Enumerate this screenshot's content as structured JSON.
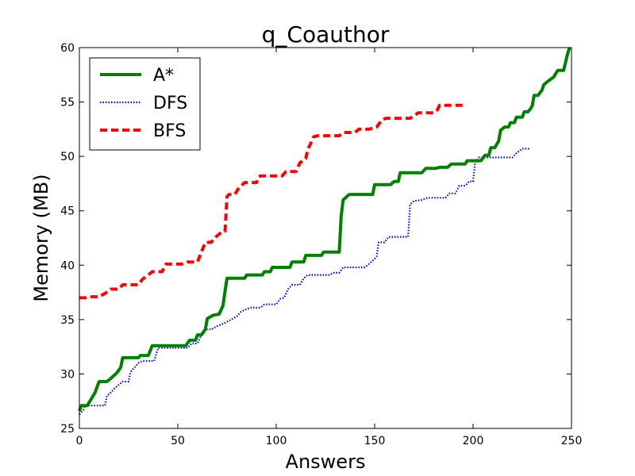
{
  "chart_data": {
    "type": "line",
    "title": "q_Coauthor",
    "xlabel": "Answers",
    "ylabel": "Memory (MB)",
    "xlim": [
      0,
      250
    ],
    "ylim": [
      25,
      60
    ],
    "xticks": [
      0,
      50,
      100,
      150,
      200,
      250
    ],
    "yticks": [
      25,
      30,
      35,
      40,
      45,
      50,
      55,
      60
    ],
    "grid": false,
    "legend_position": "top-left",
    "series": [
      {
        "name": "A*",
        "color": "#008000",
        "style": "solid",
        "points": [
          [
            0,
            26.6
          ],
          [
            1,
            27.1
          ],
          [
            4,
            27.1
          ],
          [
            6,
            27.7
          ],
          [
            8,
            28.3
          ],
          [
            10,
            29.3
          ],
          [
            14,
            29.3
          ],
          [
            16,
            29.6
          ],
          [
            19,
            30.1
          ],
          [
            21,
            30.6
          ],
          [
            22,
            31.5
          ],
          [
            30,
            31.5
          ],
          [
            31,
            31.7
          ],
          [
            35,
            31.7
          ],
          [
            37,
            32.6
          ],
          [
            54,
            32.6
          ],
          [
            56,
            33.1
          ],
          [
            59,
            33.1
          ],
          [
            60,
            33.6
          ],
          [
            62,
            33.6
          ],
          [
            64,
            34.1
          ],
          [
            65,
            35.1
          ],
          [
            68,
            35.4
          ],
          [
            71,
            35.5
          ],
          [
            73,
            36.3
          ],
          [
            74,
            37.6
          ],
          [
            75,
            38.8
          ],
          [
            84,
            38.8
          ],
          [
            85,
            39.1
          ],
          [
            93,
            39.1
          ],
          [
            94,
            39.4
          ],
          [
            97,
            39.4
          ],
          [
            98,
            39.8
          ],
          [
            107,
            39.8
          ],
          [
            108,
            40.3
          ],
          [
            114,
            40.3
          ],
          [
            115,
            40.9
          ],
          [
            123,
            40.9
          ],
          [
            124,
            41.2
          ],
          [
            132,
            41.2
          ],
          [
            133,
            44.5
          ],
          [
            134,
            46.0
          ],
          [
            137,
            46.5
          ],
          [
            149,
            46.5
          ],
          [
            150,
            47.4
          ],
          [
            158,
            47.4
          ],
          [
            160,
            47.7
          ],
          [
            162,
            47.7
          ],
          [
            163,
            48.5
          ],
          [
            174,
            48.5
          ],
          [
            176,
            48.9
          ],
          [
            181,
            48.9
          ],
          [
            183,
            49.0
          ],
          [
            187,
            49.0
          ],
          [
            189,
            49.3
          ],
          [
            196,
            49.3
          ],
          [
            197,
            49.6
          ],
          [
            204,
            49.6
          ],
          [
            206,
            50.1
          ],
          [
            208,
            50.1
          ],
          [
            209,
            50.8
          ],
          [
            211,
            50.8
          ],
          [
            213,
            51.4
          ],
          [
            214,
            52.4
          ],
          [
            216,
            52.7
          ],
          [
            218,
            52.7
          ],
          [
            219,
            53.1
          ],
          [
            221,
            53.1
          ],
          [
            222,
            53.6
          ],
          [
            225,
            53.6
          ],
          [
            226,
            54.1
          ],
          [
            228,
            54.1
          ],
          [
            230,
            54.6
          ],
          [
            231,
            55.6
          ],
          [
            233,
            55.6
          ],
          [
            235,
            56.1
          ],
          [
            236,
            56.6
          ],
          [
            238,
            56.9
          ],
          [
            241,
            57.3
          ],
          [
            243,
            57.9
          ],
          [
            246,
            57.9
          ],
          [
            248,
            59.4
          ],
          [
            249,
            60.0
          ]
        ]
      },
      {
        "name": "DFS",
        "color": "#0000ff",
        "style": "dotted",
        "points": [
          [
            0,
            26.3
          ],
          [
            2,
            26.7
          ],
          [
            3,
            27.1
          ],
          [
            13,
            27.1
          ],
          [
            14,
            28.0
          ],
          [
            16,
            28.3
          ],
          [
            18,
            28.7
          ],
          [
            20,
            29.0
          ],
          [
            22,
            29.3
          ],
          [
            25,
            29.3
          ],
          [
            26,
            30.2
          ],
          [
            28,
            30.6
          ],
          [
            30,
            31.0
          ],
          [
            32,
            31.2
          ],
          [
            38,
            31.2
          ],
          [
            40,
            32.4
          ],
          [
            55,
            32.4
          ],
          [
            57,
            32.8
          ],
          [
            60,
            32.8
          ],
          [
            62,
            33.6
          ],
          [
            64,
            34.1
          ],
          [
            67,
            34.1
          ],
          [
            70,
            34.4
          ],
          [
            74,
            34.7
          ],
          [
            77,
            35.0
          ],
          [
            80,
            35.3
          ],
          [
            82,
            35.7
          ],
          [
            84,
            35.9
          ],
          [
            87,
            36.1
          ],
          [
            92,
            36.1
          ],
          [
            94,
            36.4
          ],
          [
            100,
            36.4
          ],
          [
            102,
            36.9
          ],
          [
            104,
            37.0
          ],
          [
            106,
            37.8
          ],
          [
            108,
            38.2
          ],
          [
            112,
            38.2
          ],
          [
            114,
            38.8
          ],
          [
            116,
            39.1
          ],
          [
            127,
            39.1
          ],
          [
            129,
            39.3
          ],
          [
            132,
            39.3
          ],
          [
            134,
            39.8
          ],
          [
            145,
            39.8
          ],
          [
            147,
            40.1
          ],
          [
            149,
            40.4
          ],
          [
            151,
            40.8
          ],
          [
            152,
            42.1
          ],
          [
            155,
            42.1
          ],
          [
            157,
            42.6
          ],
          [
            167,
            42.6
          ],
          [
            168,
            45.6
          ],
          [
            170,
            45.9
          ],
          [
            174,
            46.0
          ],
          [
            177,
            46.2
          ],
          [
            186,
            46.2
          ],
          [
            188,
            46.6
          ],
          [
            191,
            46.6
          ],
          [
            193,
            47.3
          ],
          [
            196,
            47.3
          ],
          [
            198,
            47.7
          ],
          [
            200,
            47.7
          ],
          [
            201,
            49.4
          ],
          [
            203,
            49.9
          ],
          [
            220,
            49.9
          ],
          [
            222,
            50.3
          ],
          [
            225,
            50.7
          ],
          [
            229,
            50.7
          ]
        ]
      },
      {
        "name": "BFS",
        "color": "#ff0000",
        "style": "dashed",
        "points": [
          [
            0,
            37.0
          ],
          [
            3,
            37.0
          ],
          [
            5,
            37.1
          ],
          [
            10,
            37.1
          ],
          [
            13,
            37.4
          ],
          [
            16,
            37.8
          ],
          [
            20,
            37.8
          ],
          [
            22,
            38.2
          ],
          [
            30,
            38.2
          ],
          [
            32,
            38.7
          ],
          [
            35,
            39.1
          ],
          [
            37,
            39.4
          ],
          [
            42,
            39.4
          ],
          [
            44,
            40.1
          ],
          [
            52,
            40.1
          ],
          [
            55,
            40.3
          ],
          [
            60,
            40.3
          ],
          [
            62,
            41.2
          ],
          [
            64,
            42.1
          ],
          [
            67,
            42.1
          ],
          [
            68,
            42.4
          ],
          [
            72,
            43.0
          ],
          [
            74,
            43.1
          ],
          [
            75,
            46.3
          ],
          [
            76,
            46.5
          ],
          [
            79,
            46.5
          ],
          [
            81,
            47.1
          ],
          [
            84,
            47.6
          ],
          [
            90,
            47.6
          ],
          [
            91,
            48.1
          ],
          [
            92,
            48.2
          ],
          [
            103,
            48.2
          ],
          [
            105,
            48.6
          ],
          [
            110,
            48.6
          ],
          [
            112,
            49.4
          ],
          [
            115,
            49.8
          ],
          [
            116,
            50.6
          ],
          [
            119,
            51.8
          ],
          [
            121,
            51.9
          ],
          [
            132,
            51.9
          ],
          [
            134,
            52.2
          ],
          [
            140,
            52.2
          ],
          [
            142,
            52.5
          ],
          [
            147,
            52.5
          ],
          [
            151,
            52.7
          ],
          [
            154,
            53.4
          ],
          [
            156,
            53.5
          ],
          [
            168,
            53.5
          ],
          [
            170,
            53.7
          ],
          [
            172,
            54.0
          ],
          [
            180,
            54.0
          ],
          [
            182,
            54.3
          ],
          [
            183,
            54.7
          ],
          [
            195,
            54.7
          ]
        ]
      }
    ]
  }
}
